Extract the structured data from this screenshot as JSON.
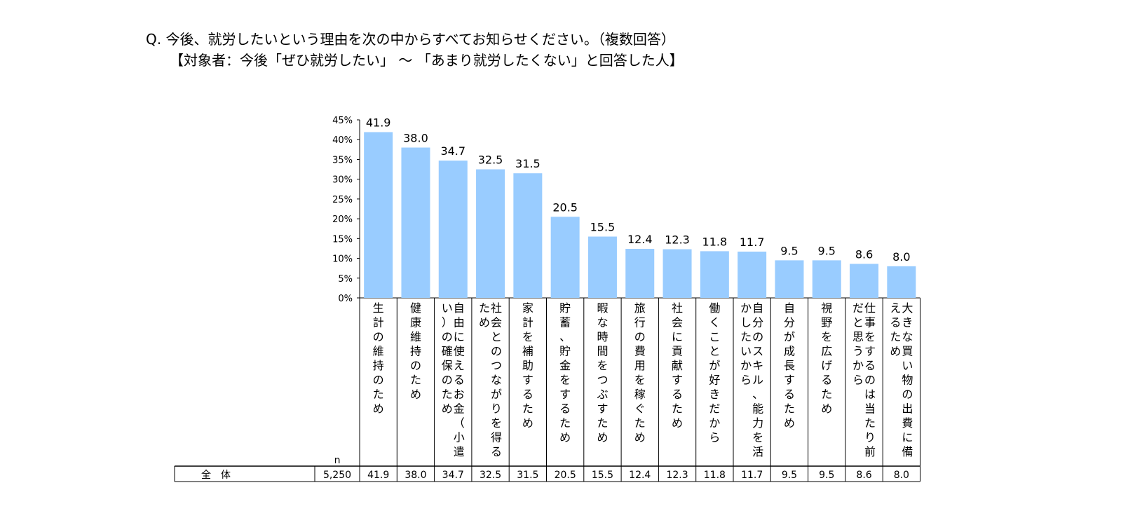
{
  "question": {
    "line1": "Q. 今後、就労したいという理由を次の中からすべてお知らせください。（複数回答）",
    "line2": "【対象者：今後「ぜひ就労したい」 ～ 「あまり就労したくない」と回答した人】"
  },
  "chart_data": {
    "type": "bar",
    "categories": [
      "生計の維持のため",
      "健康維持のため",
      "自由に使えるお金（小遣い）の確保のため",
      "社会とのつながりを得るため",
      "家計を補助するため",
      "貯蓄、貯金をするため",
      "暇な時間をつぶすため",
      "旅行の費用を稼ぐため",
      "社会に貢献するため",
      "働くことが好きだから",
      "自分のスキル、能力を活かしたいから",
      "自分が成長するため",
      "視野を広げるため",
      "仕事をするのは当たり前だと思うから",
      "大きな買い物の出費に備えるため"
    ],
    "values": [
      41.9,
      38.0,
      34.7,
      32.5,
      31.5,
      20.5,
      15.5,
      12.4,
      12.3,
      11.8,
      11.7,
      9.5,
      9.5,
      8.6,
      8.0
    ],
    "value_labels": [
      "41.9",
      "38.0",
      "34.7",
      "32.5",
      "31.5",
      "20.5",
      "15.5",
      "12.4",
      "12.3",
      "11.8",
      "11.7",
      "9.5",
      "9.5",
      "8.6",
      "8.0"
    ],
    "ylim": [
      0,
      45
    ],
    "yticks": [
      "0%",
      "5%",
      "10%",
      "15%",
      "20%",
      "25%",
      "30%",
      "35%",
      "40%",
      "45%"
    ],
    "bar_color": "#99ccff",
    "table": {
      "n_header": "n",
      "row_label": "全　体",
      "n": "5,250",
      "values": [
        "41.9",
        "38.0",
        "34.7",
        "32.5",
        "31.5",
        "20.5",
        "15.5",
        "12.4",
        "12.3",
        "11.8",
        "11.7",
        "9.5",
        "9.5",
        "8.6",
        "8.0"
      ]
    }
  }
}
